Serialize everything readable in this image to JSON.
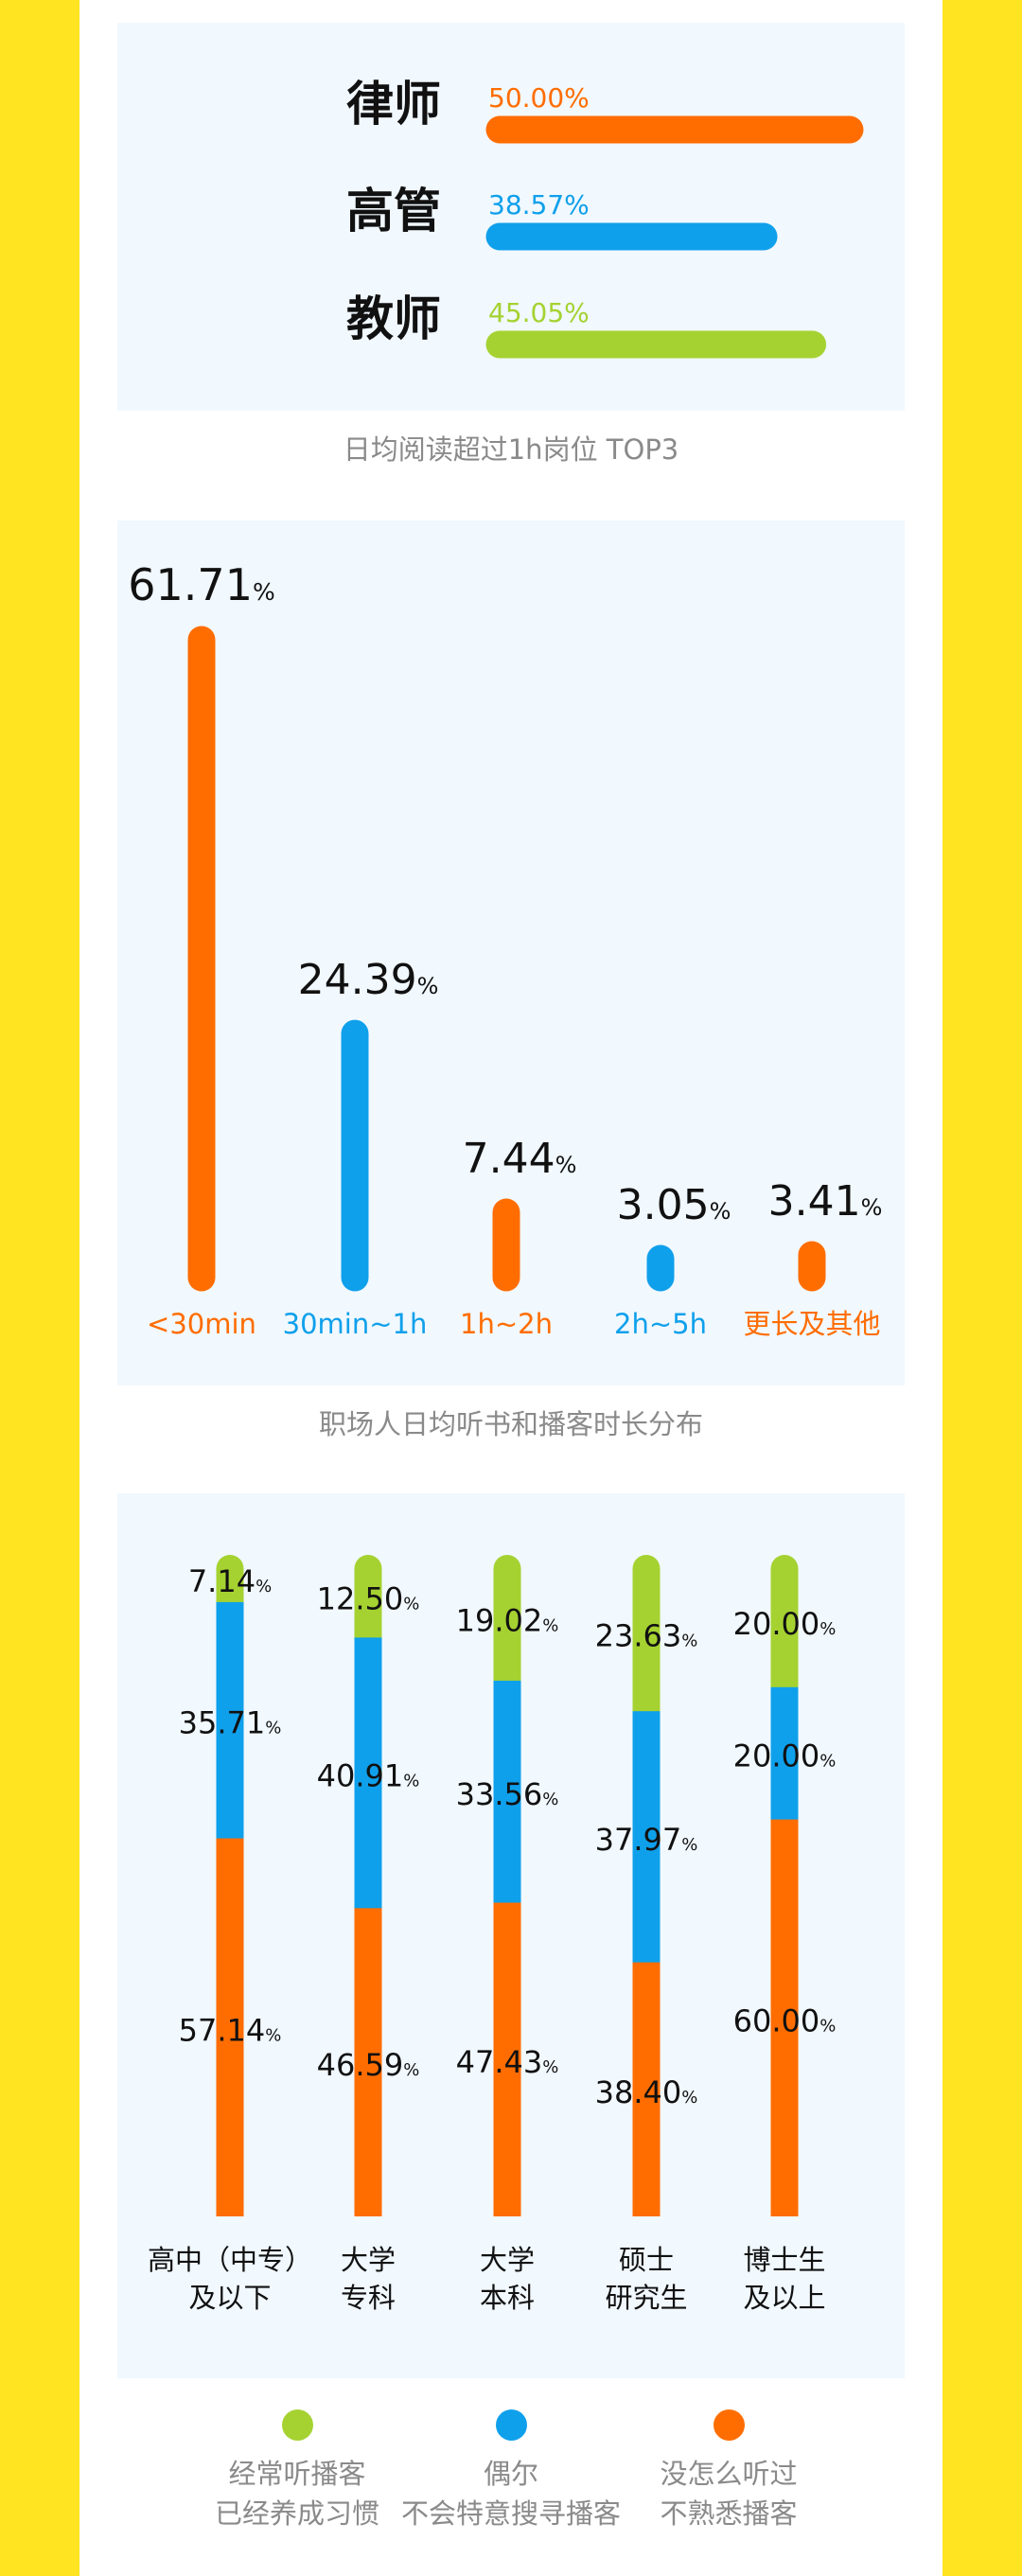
{
  "colors": {
    "orange": "#FF6D00",
    "blue": "#0FA0EB",
    "green": "#A5D231",
    "yellow": "#FFE421"
  },
  "top_jobs": {
    "caption": "日均阅读超过1h岗位 TOP3",
    "items": [
      {
        "label": "律师",
        "value": 50.0,
        "text": "50.00%",
        "color": "#FF6D00"
      },
      {
        "label": "高管",
        "value": 38.57,
        "text": "38.57%",
        "color": "#0FA0EB"
      },
      {
        "label": "教师",
        "value": 45.05,
        "text": "45.05%",
        "color": "#A5D231"
      }
    ]
  },
  "duration": {
    "caption": "职场人日均听书和播客时长分布",
    "items": [
      {
        "label": "<30min",
        "num": "61.71",
        "value": 61.71,
        "color": "#FF6D00"
      },
      {
        "label": "30min~1h",
        "num": "24.39",
        "value": 24.39,
        "color": "#0FA0EB"
      },
      {
        "label": "1h~2h",
        "num": "7.44",
        "value": 7.44,
        "color": "#FF6D00"
      },
      {
        "label": "2h~5h",
        "num": "3.05",
        "value": 3.05,
        "color": "#0FA0EB"
      },
      {
        "label": "更长及其他",
        "num": "3.41",
        "value": 3.41,
        "color": "#FF6D00"
      }
    ]
  },
  "education": {
    "groups": [
      {
        "line1": "高中（中专）",
        "line2": "及以下",
        "green": "7.14",
        "blue": "35.71",
        "orange": "57.14"
      },
      {
        "line1": "大学",
        "line2": "专科",
        "green": "12.50",
        "blue": "40.91",
        "orange": "46.59"
      },
      {
        "line1": "大学",
        "line2": "本科",
        "green": "19.02",
        "blue": "33.56",
        "orange": "47.43"
      },
      {
        "line1": "硕士",
        "line2": "研究生",
        "green": "23.63",
        "blue": "37.97",
        "orange": "38.40"
      },
      {
        "line1": "博士生",
        "line2": "及以上",
        "green": "20.00",
        "blue": "20.00",
        "orange": "60.00"
      }
    ],
    "legend": [
      {
        "line1": "经常听播客",
        "line2": "已经养成习惯",
        "color": "#A5D231"
      },
      {
        "line1": "偶尔",
        "line2": "不会特意搜寻播客",
        "color": "#0FA0EB"
      },
      {
        "line1": "没怎么听过",
        "line2": "不熟悉播客",
        "color": "#FF6D00"
      }
    ]
  },
  "chart_data": [
    {
      "type": "bar",
      "orientation": "horizontal",
      "title": "日均阅读超过1h岗位 TOP3",
      "categories": [
        "律师",
        "高管",
        "教师"
      ],
      "values": [
        50.0,
        38.57,
        45.05
      ],
      "unit": "%"
    },
    {
      "type": "bar",
      "title": "职场人日均听书和播客时长分布",
      "categories": [
        "<30min",
        "30min~1h",
        "1h~2h",
        "2h~5h",
        "更长及其他"
      ],
      "values": [
        61.71,
        24.39,
        7.44,
        3.05,
        3.41
      ],
      "unit": "%"
    },
    {
      "type": "bar",
      "stacked": true,
      "categories": [
        "高中（中专）及以下",
        "大学专科",
        "大学本科",
        "硕士研究生",
        "博士生及以上"
      ],
      "series": [
        {
          "name": "经常听播客 已经养成习惯",
          "values": [
            7.14,
            12.5,
            19.02,
            23.63,
            20.0
          ]
        },
        {
          "name": "偶尔 不会特意搜寻播客",
          "values": [
            35.71,
            40.91,
            33.56,
            37.97,
            20.0
          ]
        },
        {
          "name": "没怎么听过 不熟悉播客",
          "values": [
            57.14,
            46.59,
            47.43,
            38.4,
            60.0
          ]
        }
      ],
      "unit": "%",
      "legend": "bottom"
    }
  ]
}
